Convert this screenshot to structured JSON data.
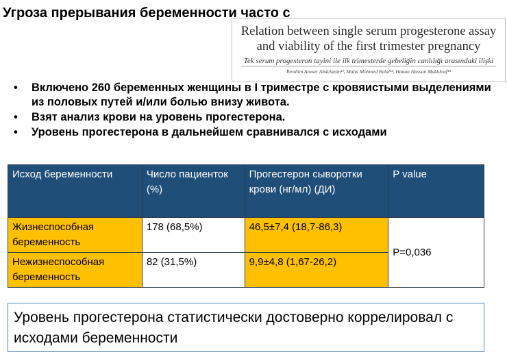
{
  "slide": {
    "title": "Угроза прерывания беременности часто связана с прогестероновой недо"
  },
  "paper": {
    "title": "Relation between single serum progesterone assay and viability of the first trimester pregnancy",
    "subtitle": "Tek serum progesteron tayini ile ilk trimesterde gebeliğin canlılığı arasındaki ilişki",
    "authors": "İbrahim Anwar Abdelazim¹², Maha Mohmed Belal³⁴, Hanan Hassan Makhlouf⁴⁵"
  },
  "bullets": [
    "Включено 260 беременных женщины в I триместре с кровяистыми выделениями из половых путей и/или болью внизу живота.",
    "Взят анализ крови на уровень прогестерона.",
    "Уровень прогестерона в дальнейшем сравнивался с исходами"
  ],
  "table": {
    "headers": [
      "Исход беременности",
      "Число пациенток (%)",
      "Прогестерон сыворотки крови (нг/мл) (ДИ)",
      "P value"
    ],
    "rows": [
      {
        "outcome": "Жизнеспособная беременность",
        "count": "178 (68,5%)",
        "progesterone": "46,5±7,4 (18,7-86,3)"
      },
      {
        "outcome": "Нежизнеспособная беременность",
        "count": "82 (31,5%)",
        "progesterone": "9,9±4,8 (1,67-26,2)"
      }
    ],
    "p_value": "P=0,036"
  },
  "conclusion": "Уровень прогестерона статистически достоверно коррелировал с исходами беременности",
  "colors": {
    "header_bg": "#1f4e79",
    "highlight": "#ffc000",
    "conclusion_border": "#4f81bd"
  }
}
